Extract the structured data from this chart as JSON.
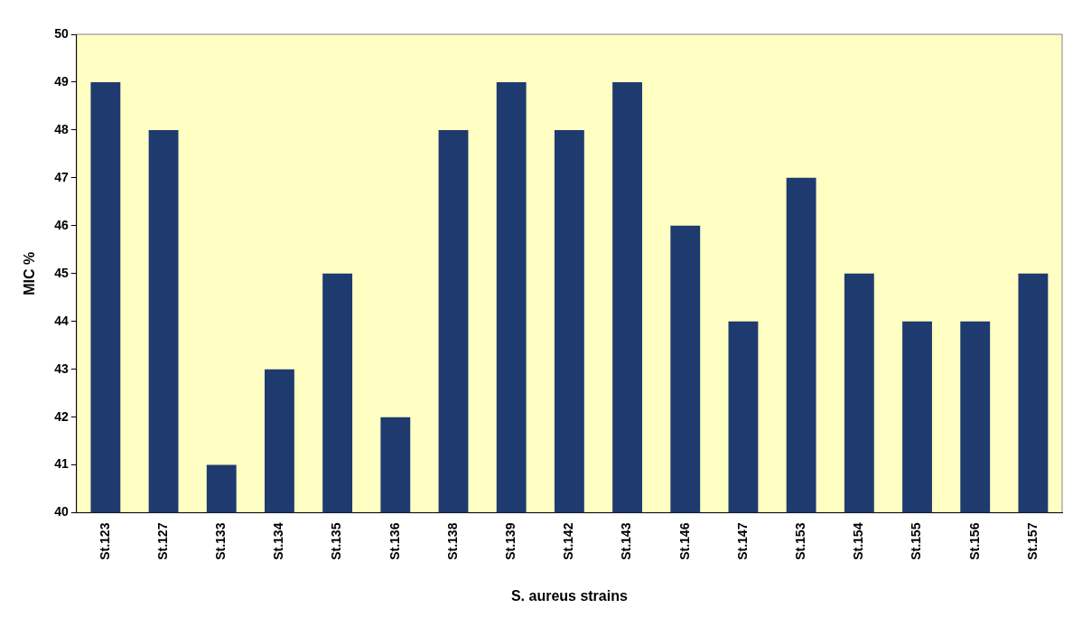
{
  "chart_data": {
    "type": "bar",
    "xlabel": "S. aureus strains",
    "ylabel": "MIC %",
    "categories": [
      "St.123",
      "St.127",
      "St.133",
      "St.134",
      "St.135",
      "St.136",
      "St.138",
      "St.139",
      "St.142",
      "St.143",
      "St.146",
      "St.147",
      "St.153",
      "St.154",
      "St.155",
      "St.156",
      "St.157"
    ],
    "values": [
      49,
      48,
      41,
      43,
      45,
      42,
      48,
      49,
      48,
      49,
      46,
      44,
      47,
      45,
      44,
      44,
      45
    ],
    "color": "#1f3a6e",
    "ylim": [
      40,
      50
    ],
    "yticks": [
      40,
      41,
      42,
      43,
      44,
      45,
      46,
      47,
      48,
      49,
      50
    ],
    "grid": false
  }
}
